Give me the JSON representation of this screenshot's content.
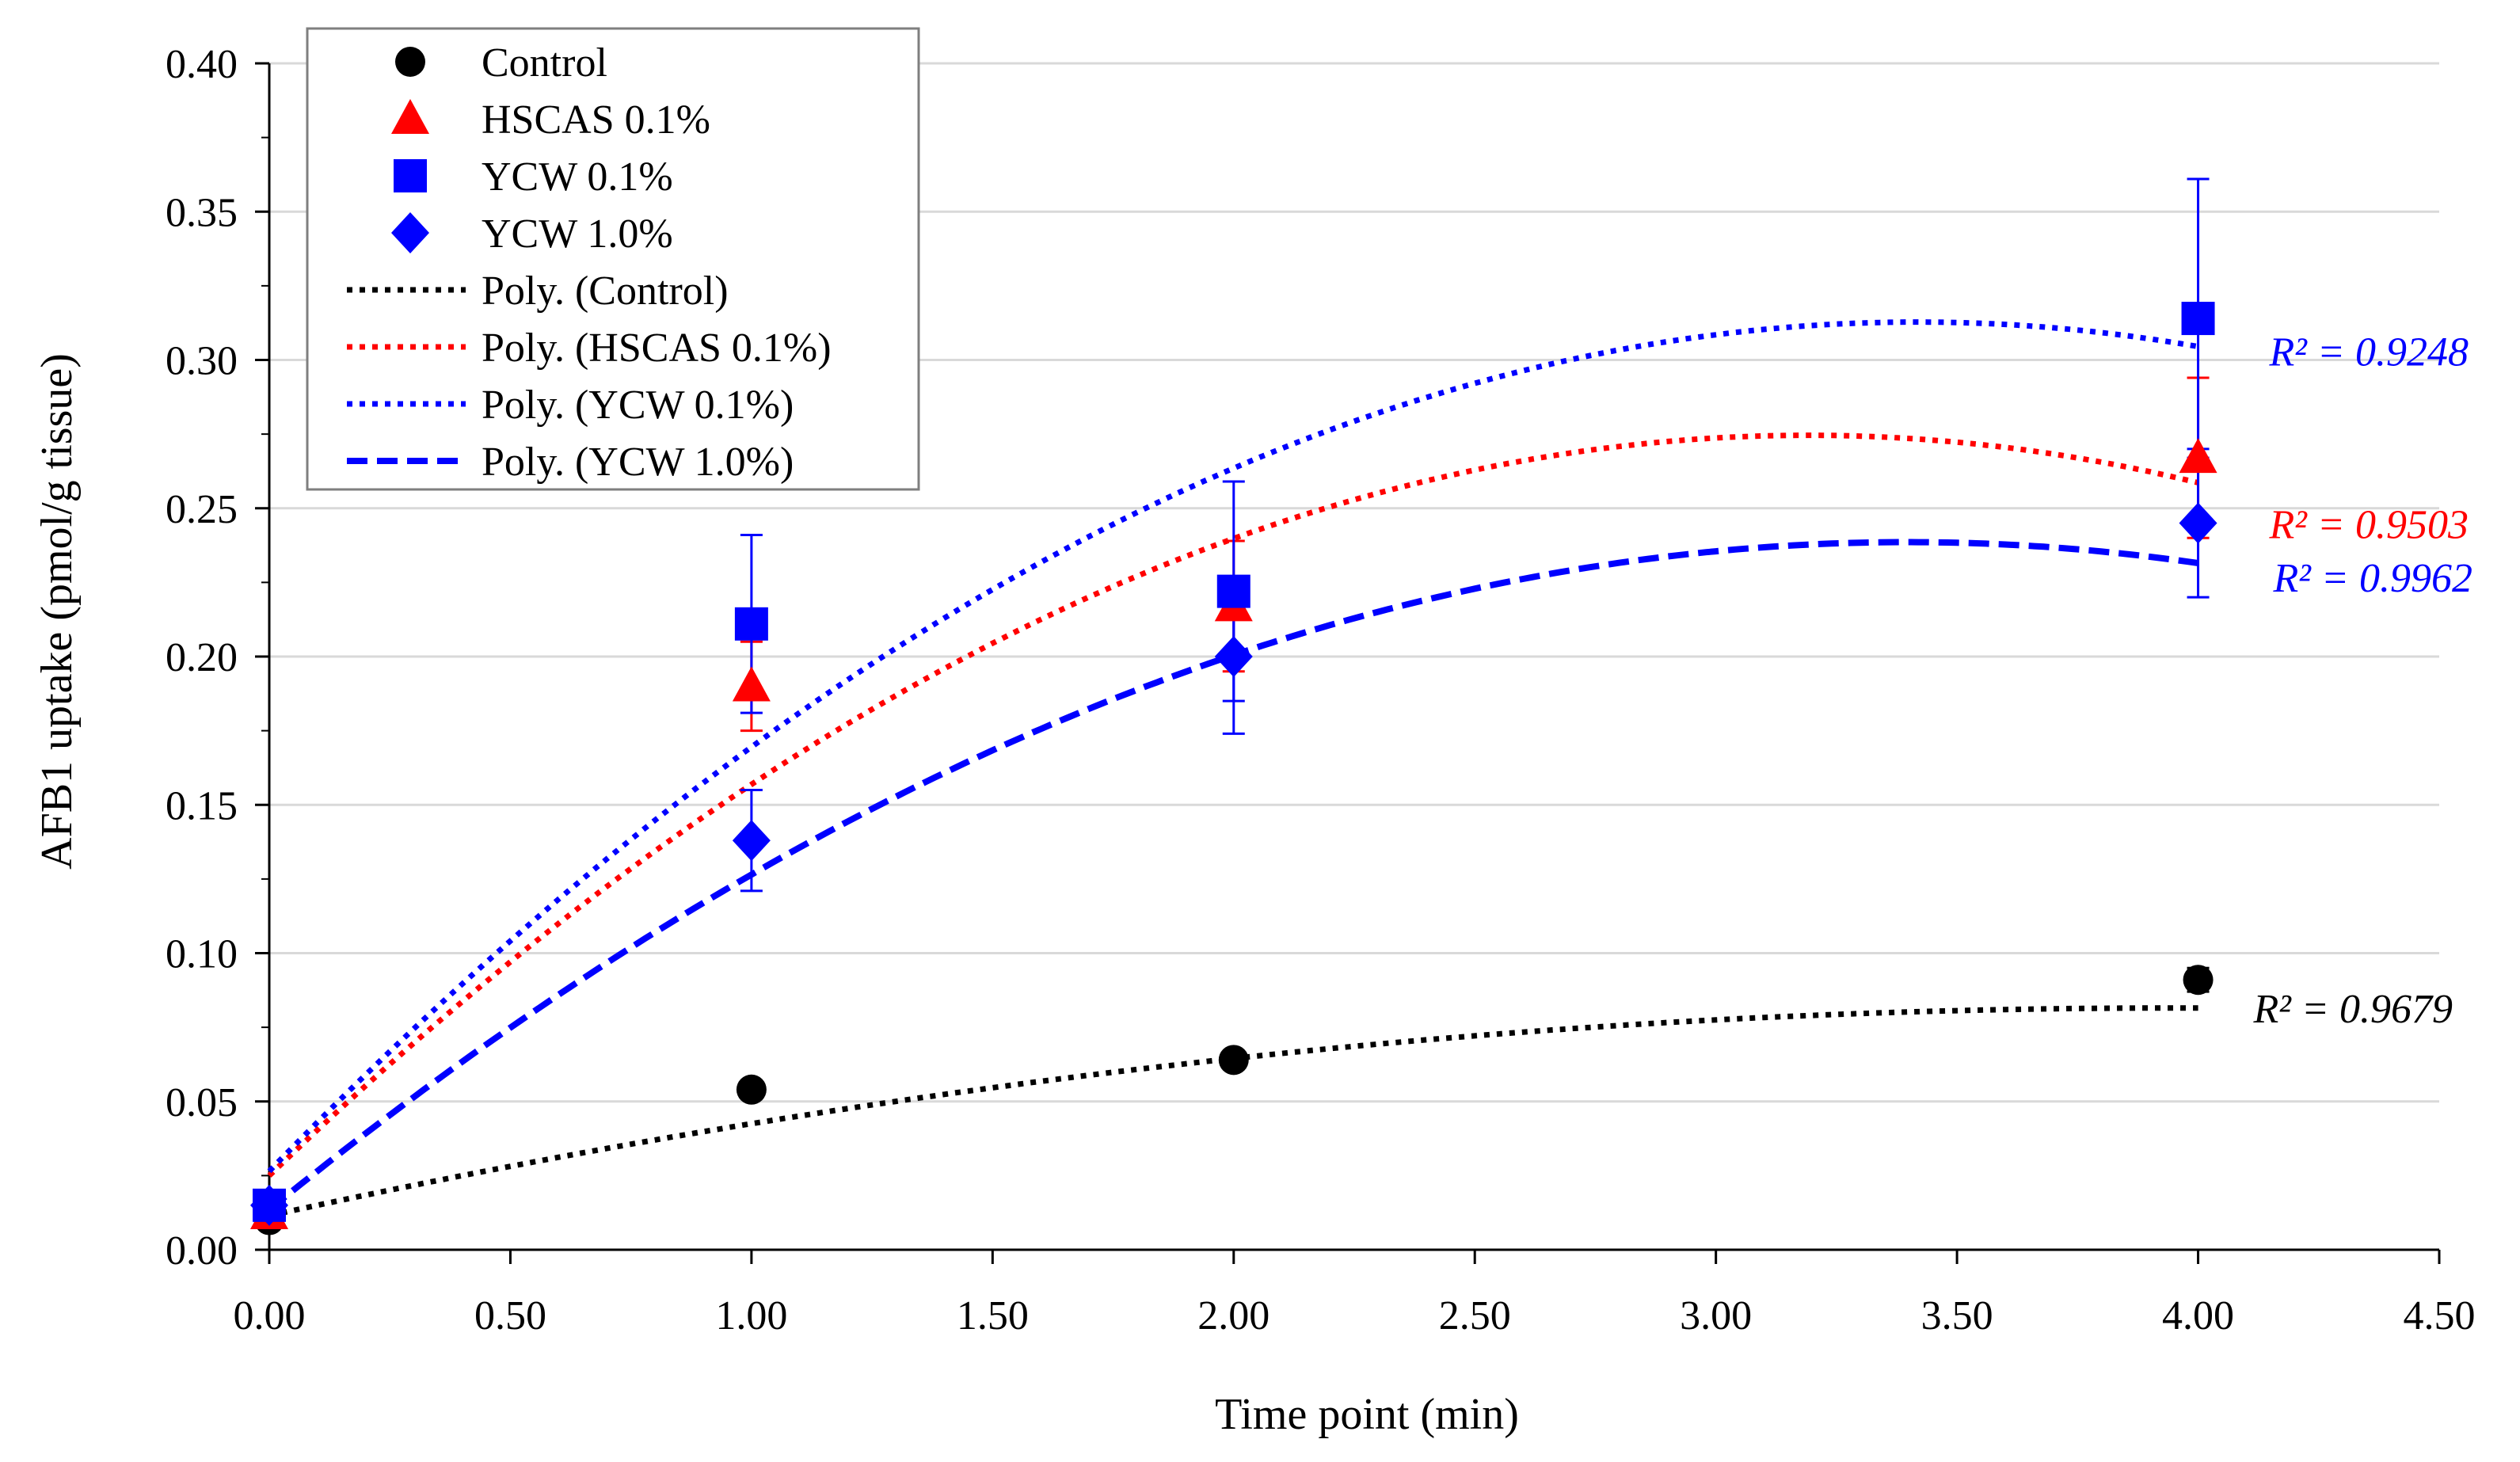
{
  "chart_data": {
    "type": "scatter",
    "title": "",
    "xlabel": "Time point (min)",
    "ylabel": "AFB1 uptake (pmol/g tissue)",
    "xlim": [
      0,
      4.5
    ],
    "ylim": [
      0,
      0.4
    ],
    "xticks": [
      0,
      0.5,
      1,
      1.5,
      2,
      2.5,
      3,
      3.5,
      4,
      4.5
    ],
    "yticks": [
      0,
      0.05,
      0.1,
      0.15,
      0.2,
      0.25,
      0.3,
      0.35,
      0.4
    ],
    "x_tick_labels": [
      "0.00",
      "0.50",
      "1.00",
      "1.50",
      "2.00",
      "2.50",
      "3.00",
      "3.50",
      "4.00",
      "4.50"
    ],
    "y_tick_labels": [
      "0.00",
      "0.05",
      "0.10",
      "0.15",
      "0.20",
      "0.25",
      "0.30",
      "0.35",
      "0.40"
    ],
    "grid": "horizontal",
    "legend_position": "top-left",
    "series": [
      {
        "name": "Control",
        "marker": "circle",
        "color": "#000000",
        "x": [
          0,
          1,
          2,
          4
        ],
        "y": [
          0.01,
          0.054,
          0.064,
          0.091
        ],
        "error": [
          0.002,
          0.002,
          0.002,
          0.004
        ],
        "trend": {
          "label": "Poly. (Control)",
          "style": "dotted",
          "coefficients": [
            0.0115,
            0.0355,
            -0.0045
          ],
          "r2_label": "R² = 0.9679"
        }
      },
      {
        "name": "HSCAS 0.1%",
        "marker": "triangle",
        "color": "#ff0000",
        "x": [
          0,
          1,
          2,
          4
        ],
        "y": [
          0.012,
          0.19,
          0.217,
          0.267
        ],
        "error": [
          0.002,
          0.015,
          0.022,
          0.027
        ],
        "trend": {
          "label": "Poly. (HSCAS 0.1%)",
          "style": "dotted",
          "coefficients": [
            0.025,
            0.1564,
            -0.0245
          ],
          "r2_label": "R² = 0.9503"
        }
      },
      {
        "name": "YCW 0.1%",
        "marker": "square",
        "color": "#0000ff",
        "x": [
          0,
          1,
          2,
          4
        ],
        "y": [
          0.015,
          0.211,
          0.222,
          0.314
        ],
        "error": [
          0.002,
          0.03,
          0.037,
          0.047
        ],
        "trend": {
          "label": "Poly. (YCW 0.1%)",
          "style": "dotted",
          "coefficients": [
            0.0265,
            0.1675,
            -0.0245
          ],
          "r2_label": "R² = 0.9248"
        }
      },
      {
        "name": "YCW 1.0%",
        "marker": "diamond",
        "color": "#0000ff",
        "x": [
          0,
          1,
          2,
          4
        ],
        "y": [
          0.015,
          0.138,
          0.2,
          0.245
        ],
        "error": [
          0.002,
          0.017,
          0.026,
          0.025
        ],
        "trend": {
          "label": "Poly. (YCW 1.0%)",
          "style": "dashed",
          "coefficients": [
            0.0135,
            0.1325,
            -0.0195
          ],
          "r2_label": "R² = 0.9962"
        }
      }
    ]
  }
}
